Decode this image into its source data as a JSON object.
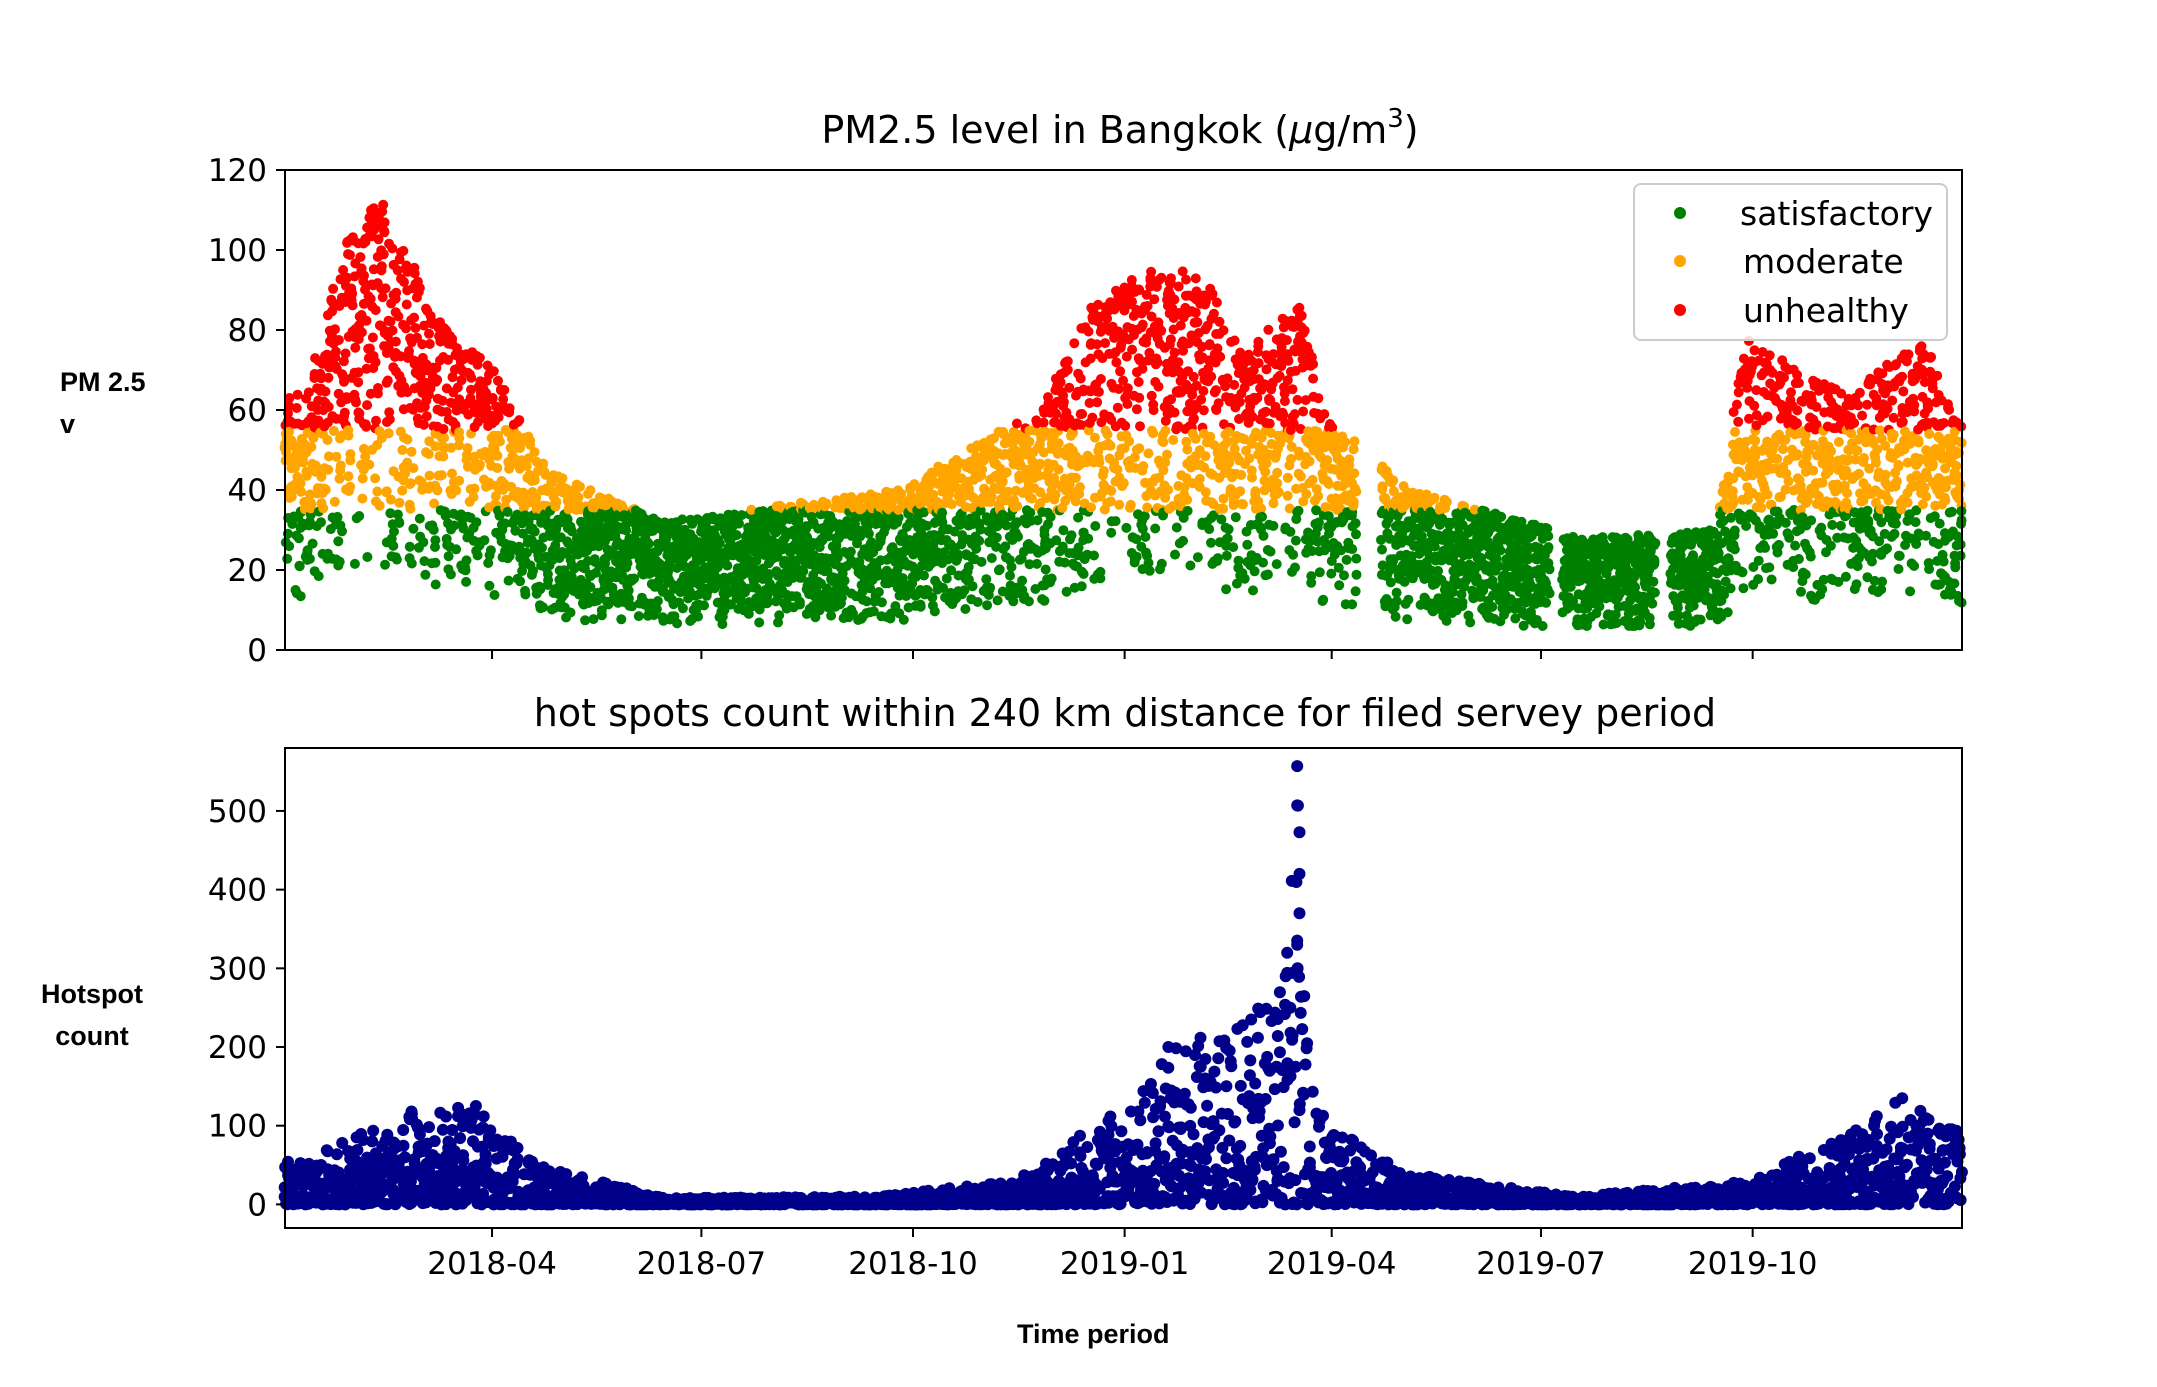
{
  "figure": {
    "x_label": "Time period",
    "x_tick_labels": [
      "2018-04",
      "2018-07",
      "2018-10",
      "2019-01",
      "2019-04",
      "2019-07",
      "2019-10"
    ]
  },
  "chart_data": [
    {
      "type": "scatter",
      "title": "PM2.5 level in Bangkok (μg/m³)",
      "title_parts": {
        "main": "PM2.5 level in Bangkok (",
        "mu": "μ",
        "unit": "g/m",
        "sup": "3",
        "close": ")"
      },
      "ylabel_lines": [
        "PM 2.5",
        "v"
      ],
      "xlabel": "",
      "x_range": [
        "2018-01-01",
        "2019-12-31"
      ],
      "ylim": [
        0,
        120
      ],
      "y_ticks": [
        0,
        20,
        40,
        60,
        80,
        100,
        120
      ],
      "x_tick_labels_shown": false,
      "grid": false,
      "legend_position": "top-right",
      "categories": [
        {
          "name": "satisfactory",
          "color": "#008000",
          "range": [
            0,
            35
          ]
        },
        {
          "name": "moderate",
          "color": "#ffa500",
          "range": [
            35,
            55
          ]
        },
        {
          "name": "unhealthy",
          "color": "#ff0000",
          "range": [
            55,
            120
          ]
        }
      ],
      "series_profile": {
        "description_points": [
          {
            "date": "2018-01-10",
            "max": 64
          },
          {
            "date": "2018-01-28",
            "max": 104
          },
          {
            "date": "2018-02-12",
            "max": 114
          },
          {
            "date": "2018-02-19",
            "max": 104
          },
          {
            "date": "2018-03-08",
            "max": 84
          },
          {
            "date": "2018-03-22",
            "max": 76
          },
          {
            "date": "2018-04-03",
            "max": 69
          },
          {
            "date": "2018-04-25",
            "max": 45
          },
          {
            "date": "2018-06-15",
            "max": 32
          },
          {
            "date": "2018-08-15",
            "max": 37
          },
          {
            "date": "2018-09-25",
            "max": 40
          },
          {
            "date": "2018-11-10",
            "max": 56
          },
          {
            "date": "2018-11-25",
            "max": 59
          },
          {
            "date": "2018-12-20",
            "max": 89
          },
          {
            "date": "2019-01-20",
            "max": 97
          },
          {
            "date": "2019-02-05",
            "max": 93
          },
          {
            "date": "2019-02-22",
            "max": 75
          },
          {
            "date": "2019-03-18",
            "max": 87
          },
          {
            "date": "2019-03-30",
            "max": 58
          },
          {
            "date": "2019-05-05",
            "max": 40
          },
          {
            "date": "2019-07-20",
            "max": 28
          },
          {
            "date": "2019-09-15",
            "max": 30
          },
          {
            "date": "2019-09-28",
            "max": 78
          },
          {
            "date": "2019-11-10",
            "max": 64
          },
          {
            "date": "2019-11-22",
            "max": 69
          },
          {
            "date": "2019-12-15",
            "max": 78
          },
          {
            "date": "2019-12-30",
            "max": 56
          }
        ]
      }
    },
    {
      "type": "scatter",
      "title": "hot spots count within 240 km distance for filed servey period",
      "ylabel_lines": [
        "Hotspot",
        "count"
      ],
      "xlabel": "Time period",
      "x_range": [
        "2018-01-01",
        "2019-12-31"
      ],
      "ylim": [
        -30,
        580
      ],
      "y_ticks": [
        0,
        100,
        200,
        300,
        400,
        500
      ],
      "grid": false,
      "color": "#00008b",
      "series_profile": {
        "description_points": [
          {
            "date": "2018-01-10",
            "max": 60
          },
          {
            "date": "2018-02-25",
            "max": 118
          },
          {
            "date": "2018-03-25",
            "max": 125
          },
          {
            "date": "2018-04-20",
            "max": 50
          },
          {
            "date": "2018-06-15",
            "max": 8
          },
          {
            "date": "2018-09-15",
            "max": 10
          },
          {
            "date": "2018-11-15",
            "max": 30
          },
          {
            "date": "2018-12-20",
            "max": 105
          },
          {
            "date": "2019-01-05",
            "max": 130
          },
          {
            "date": "2019-01-20",
            "max": 200
          },
          {
            "date": "2019-02-25",
            "max": 235
          },
          {
            "date": "2019-03-10",
            "max": 300
          },
          {
            "date": "2019-03-17",
            "max": 557
          },
          {
            "date": "2019-03-25",
            "max": 120
          },
          {
            "date": "2019-05-01",
            "max": 40
          },
          {
            "date": "2019-07-15",
            "max": 10
          },
          {
            "date": "2019-10-01",
            "max": 30
          },
          {
            "date": "2019-12-05",
            "max": 135
          },
          {
            "date": "2019-12-30",
            "max": 95
          }
        ]
      }
    }
  ]
}
